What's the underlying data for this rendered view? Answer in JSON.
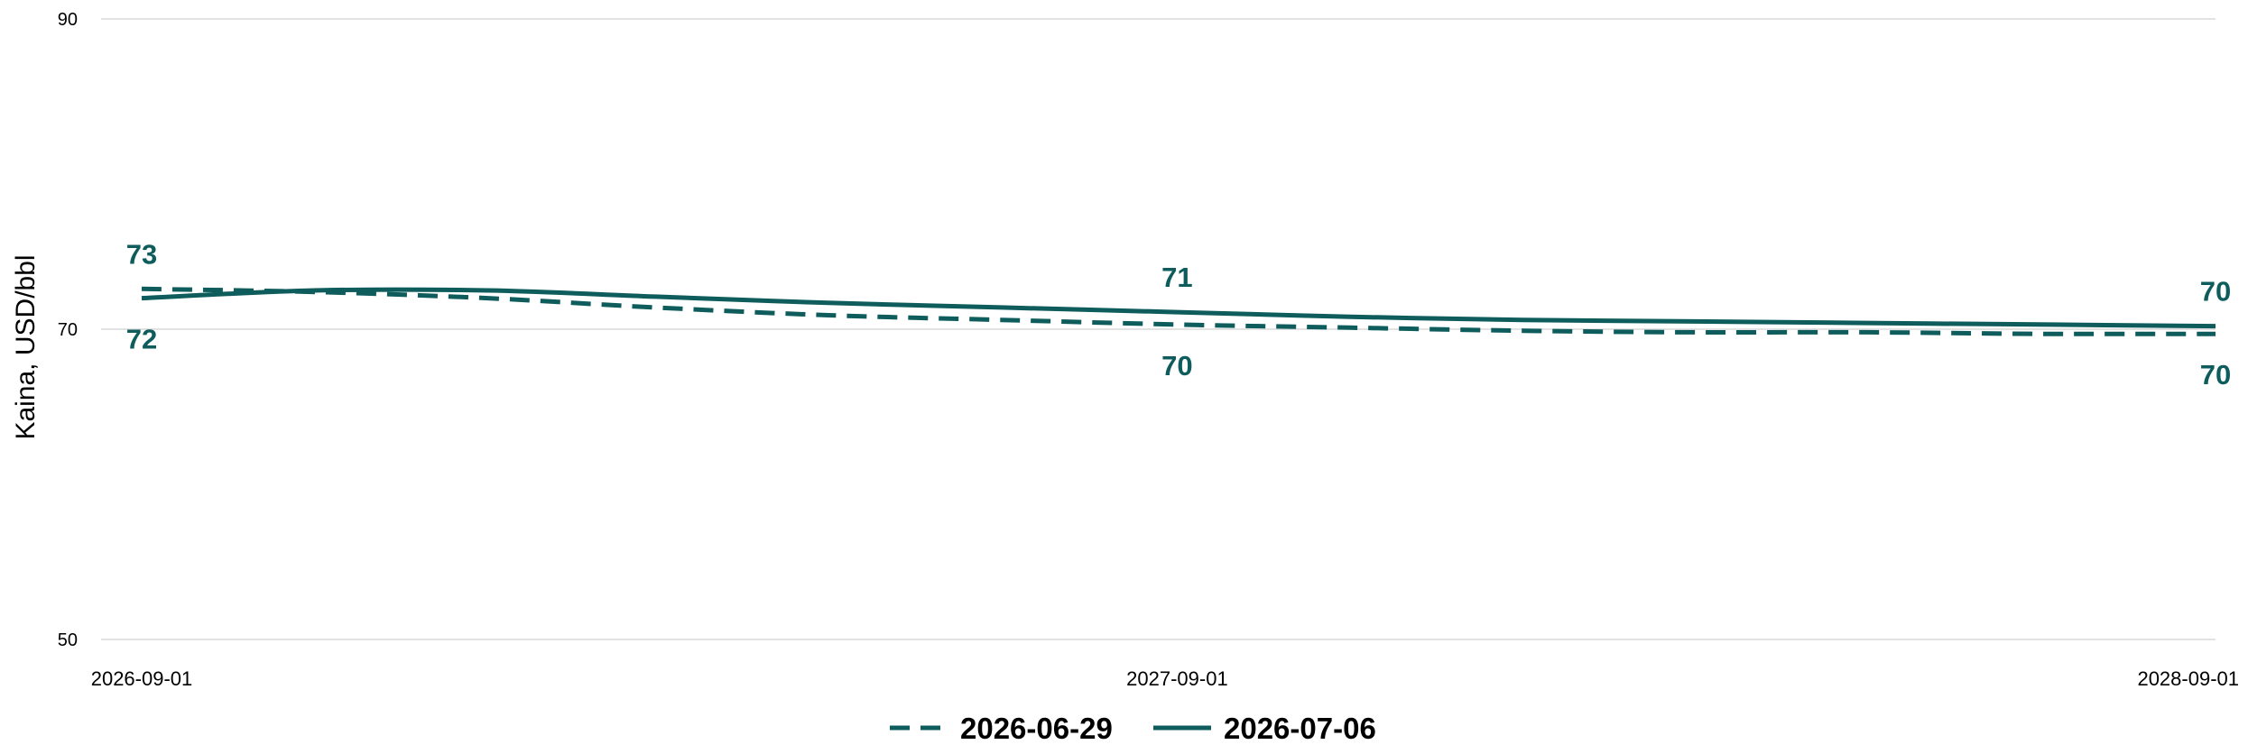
{
  "chart_data": {
    "type": "line",
    "xlabel": "",
    "ylabel": "Kaina, USD/bbl",
    "ylim": [
      50,
      90
    ],
    "yticks": [
      "50",
      "70",
      "90"
    ],
    "xticks": [
      "2026-09-01",
      "2027-09-01",
      "2028-09-01"
    ],
    "grid": true,
    "legend": "bottom",
    "colors": {
      "line": "#0f5c5c",
      "grid": "#d9d9d9",
      "label": "#0f5c5c"
    },
    "series": [
      {
        "name": "2026-06-29",
        "style": "dashed",
        "x": [
          "2026-09-01",
          "2026-11-01",
          "2027-01-01",
          "2027-03-01",
          "2027-05-01",
          "2027-07-01",
          "2027-09-01",
          "2027-11-01",
          "2028-01-01",
          "2028-03-01",
          "2028-05-01",
          "2028-07-01",
          "2028-09-01"
        ],
        "y": [
          72.6,
          72.4,
          72.0,
          71.4,
          70.9,
          70.6,
          70.3,
          70.1,
          69.9,
          69.8,
          69.8,
          69.7,
          69.7
        ],
        "labels": [
          {
            "x": "2026-09-01",
            "text": "73",
            "position": "above"
          },
          {
            "x": "2027-09-01",
            "text": "70",
            "position": "below"
          },
          {
            "x": "2028-09-01",
            "text": "70",
            "position": "below"
          }
        ]
      },
      {
        "name": "2026-07-06",
        "style": "solid",
        "x": [
          "2026-09-01",
          "2026-11-01",
          "2027-01-01",
          "2027-03-01",
          "2027-05-01",
          "2027-07-01",
          "2027-09-01",
          "2027-11-01",
          "2028-01-01",
          "2028-03-01",
          "2028-05-01",
          "2028-07-01",
          "2028-09-01"
        ],
        "y": [
          72.0,
          72.5,
          72.5,
          72.1,
          71.7,
          71.4,
          71.1,
          70.8,
          70.6,
          70.5,
          70.4,
          70.3,
          70.2
        ],
        "labels": [
          {
            "x": "2026-09-01",
            "text": "72",
            "position": "below"
          },
          {
            "x": "2027-09-01",
            "text": "71",
            "position": "above"
          },
          {
            "x": "2028-09-01",
            "text": "70",
            "position": "above"
          }
        ]
      }
    ]
  }
}
